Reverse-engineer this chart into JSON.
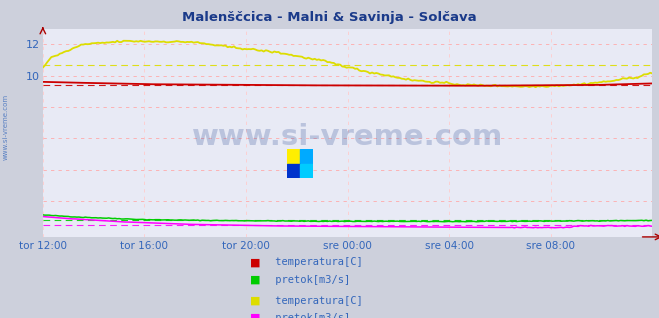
{
  "title": "Malenščcica - Malni & Savinja - Solčava",
  "bg_color": "#cdd0dc",
  "plot_bg_color": "#e8eaf5",
  "title_color": "#1a3a8a",
  "axis_label_color": "#3366bb",
  "watermark_text": "www.si-vreme.com",
  "watermark_color": "#1a3a8a",
  "sidebar_text": "www.si-vreme.com",
  "sidebar_color": "#3366bb",
  "n_points": 288,
  "xlabels": [
    "tor 12:00",
    "tor 16:00",
    "tor 20:00",
    "sre 00:00",
    "sre 04:00",
    "sre 08:00"
  ],
  "xlabels_x": [
    0,
    4,
    8,
    12,
    16,
    20
  ],
  "ylim": [
    -0.3,
    13.0
  ],
  "mal_temp_color": "#cc0000",
  "mal_flow_color": "#00cc00",
  "sav_temp_color": "#dddd00",
  "sav_flow_color": "#ff00ff",
  "grid_color": "#ffaaaa",
  "vgrid_color": "#ffcccc",
  "avg_dash": [
    5,
    4
  ]
}
